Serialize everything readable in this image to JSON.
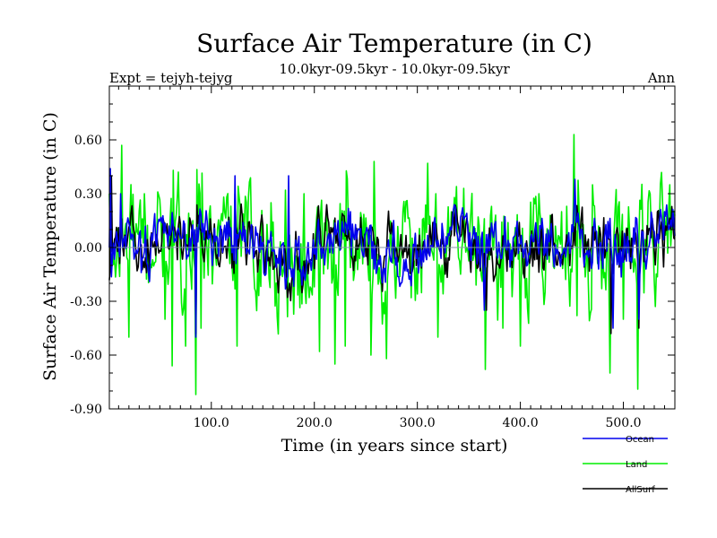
{
  "chart_data": {
    "type": "line",
    "title": "Surface Air Temperature (in C)",
    "subtitle": "10.0kyr-09.5kyr - 10.0kyr-09.5kyr",
    "left_label": "Expt = tejyh-tejyg",
    "right_label": "Ann",
    "xlabel": "Time (in years since start)",
    "ylabel": "Surface Air Temperature (in C)",
    "xlim": [
      1,
      550
    ],
    "ylim": [
      -0.9,
      0.9
    ],
    "xticks": [
      100,
      200,
      300,
      400,
      500
    ],
    "xtick_labels": [
      "100.0",
      "200.0",
      "300.0",
      "400.0",
      "500.0"
    ],
    "yticks": [
      -0.9,
      -0.6,
      -0.3,
      0.0,
      0.3,
      0.6
    ],
    "ytick_labels": [
      "-0.90",
      "-0.60",
      "-0.30",
      "0.00",
      "0.30",
      "0.60"
    ],
    "zero_line": true,
    "series": [
      {
        "name": "Land",
        "color": "#00ee00",
        "amplitude": 0.25,
        "spikes": [
          [
            1,
            0.3
          ],
          [
            13,
            0.57
          ],
          [
            20,
            -0.5
          ],
          [
            35,
            0.3
          ],
          [
            55,
            -0.4
          ],
          [
            62,
            -0.66
          ],
          [
            75,
            -0.55
          ],
          [
            85,
            -0.82
          ],
          [
            90,
            -0.45
          ],
          [
            125,
            -0.55
          ],
          [
            158,
            0.25
          ],
          [
            172,
            0.32
          ],
          [
            190,
            0.3
          ],
          [
            205,
            -0.58
          ],
          [
            220,
            -0.65
          ],
          [
            230,
            -0.55
          ],
          [
            255,
            -0.6
          ],
          [
            258,
            0.48
          ],
          [
            270,
            -0.62
          ],
          [
            310,
            0.47
          ],
          [
            320,
            -0.5
          ],
          [
            345,
            0.33
          ],
          [
            366,
            -0.68
          ],
          [
            383,
            -0.45
          ],
          [
            400,
            -0.55
          ],
          [
            418,
            0.3
          ],
          [
            452,
            0.63
          ],
          [
            455,
            -0.38
          ],
          [
            470,
            0.35
          ],
          [
            487,
            -0.7
          ],
          [
            500,
            -0.4
          ],
          [
            514,
            -0.79
          ],
          [
            545,
            0.35
          ]
        ]
      },
      {
        "name": "AllSurf",
        "color": "#000000",
        "amplitude": 0.11,
        "spikes": [
          [
            3,
            0.4
          ],
          [
            85,
            -0.48
          ],
          [
            123,
            0.3
          ],
          [
            367,
            -0.35
          ],
          [
            488,
            -0.48
          ],
          [
            515,
            -0.45
          ]
        ]
      },
      {
        "name": "Ocean",
        "color": "#0000ee",
        "amplitude": 0.1,
        "spikes": [
          [
            2,
            0.44
          ],
          [
            12,
            0.3
          ],
          [
            85,
            -0.5
          ],
          [
            123,
            0.4
          ],
          [
            175,
            0.4
          ],
          [
            235,
            0.2
          ],
          [
            365,
            -0.35
          ],
          [
            453,
            0.38
          ],
          [
            490,
            -0.45
          ],
          [
            515,
            -0.4
          ],
          [
            540,
            0.2
          ]
        ]
      }
    ],
    "legend_position": "bottom-right"
  },
  "legend": [
    {
      "label": "Ocean",
      "color": "#0000ee"
    },
    {
      "label": "Land",
      "color": "#00ee00"
    },
    {
      "label": "AllSurf",
      "color": "#000000"
    }
  ]
}
